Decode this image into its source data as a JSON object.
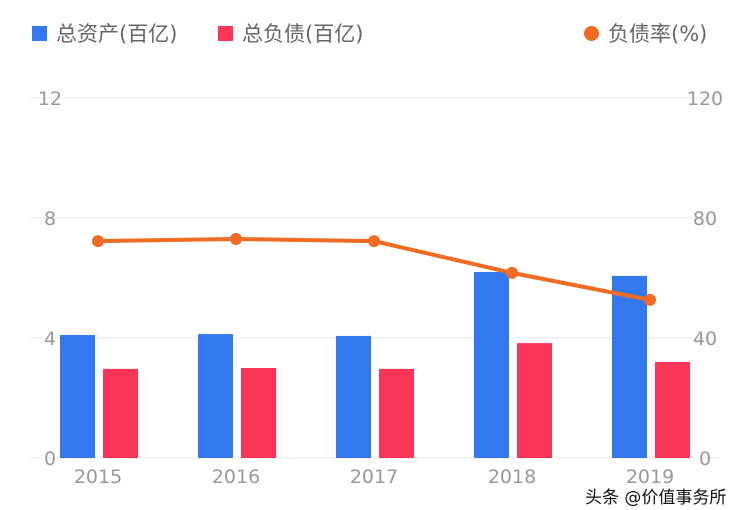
{
  "chart_data": {
    "type": "bar",
    "categories": [
      "2015",
      "2016",
      "2017",
      "2018",
      "2019"
    ],
    "series": [
      {
        "name": "总资产(百亿)",
        "type": "bar",
        "axis": "left",
        "color": "#3478f0",
        "values": [
          4.1,
          4.13,
          4.07,
          6.2,
          6.07
        ]
      },
      {
        "name": "总负债(百亿)",
        "type": "bar",
        "axis": "left",
        "color": "#fa3557",
        "values": [
          2.97,
          3.0,
          2.97,
          3.83,
          3.2
        ]
      },
      {
        "name": "负债率(%)",
        "type": "line",
        "axis": "right",
        "color": "#f26b22",
        "values": [
          72.3,
          73.0,
          72.3,
          61.7,
          52.7
        ]
      }
    ],
    "left_axis": {
      "ylim": [
        0,
        12
      ],
      "ticks": [
        "0",
        "4",
        "8",
        "12"
      ]
    },
    "right_axis": {
      "ylim": [
        0,
        120
      ],
      "ticks": [
        "0",
        "40",
        "80",
        "120"
      ]
    },
    "grid": true,
    "legend": "top"
  },
  "watermark": "头条 @价值事务所"
}
